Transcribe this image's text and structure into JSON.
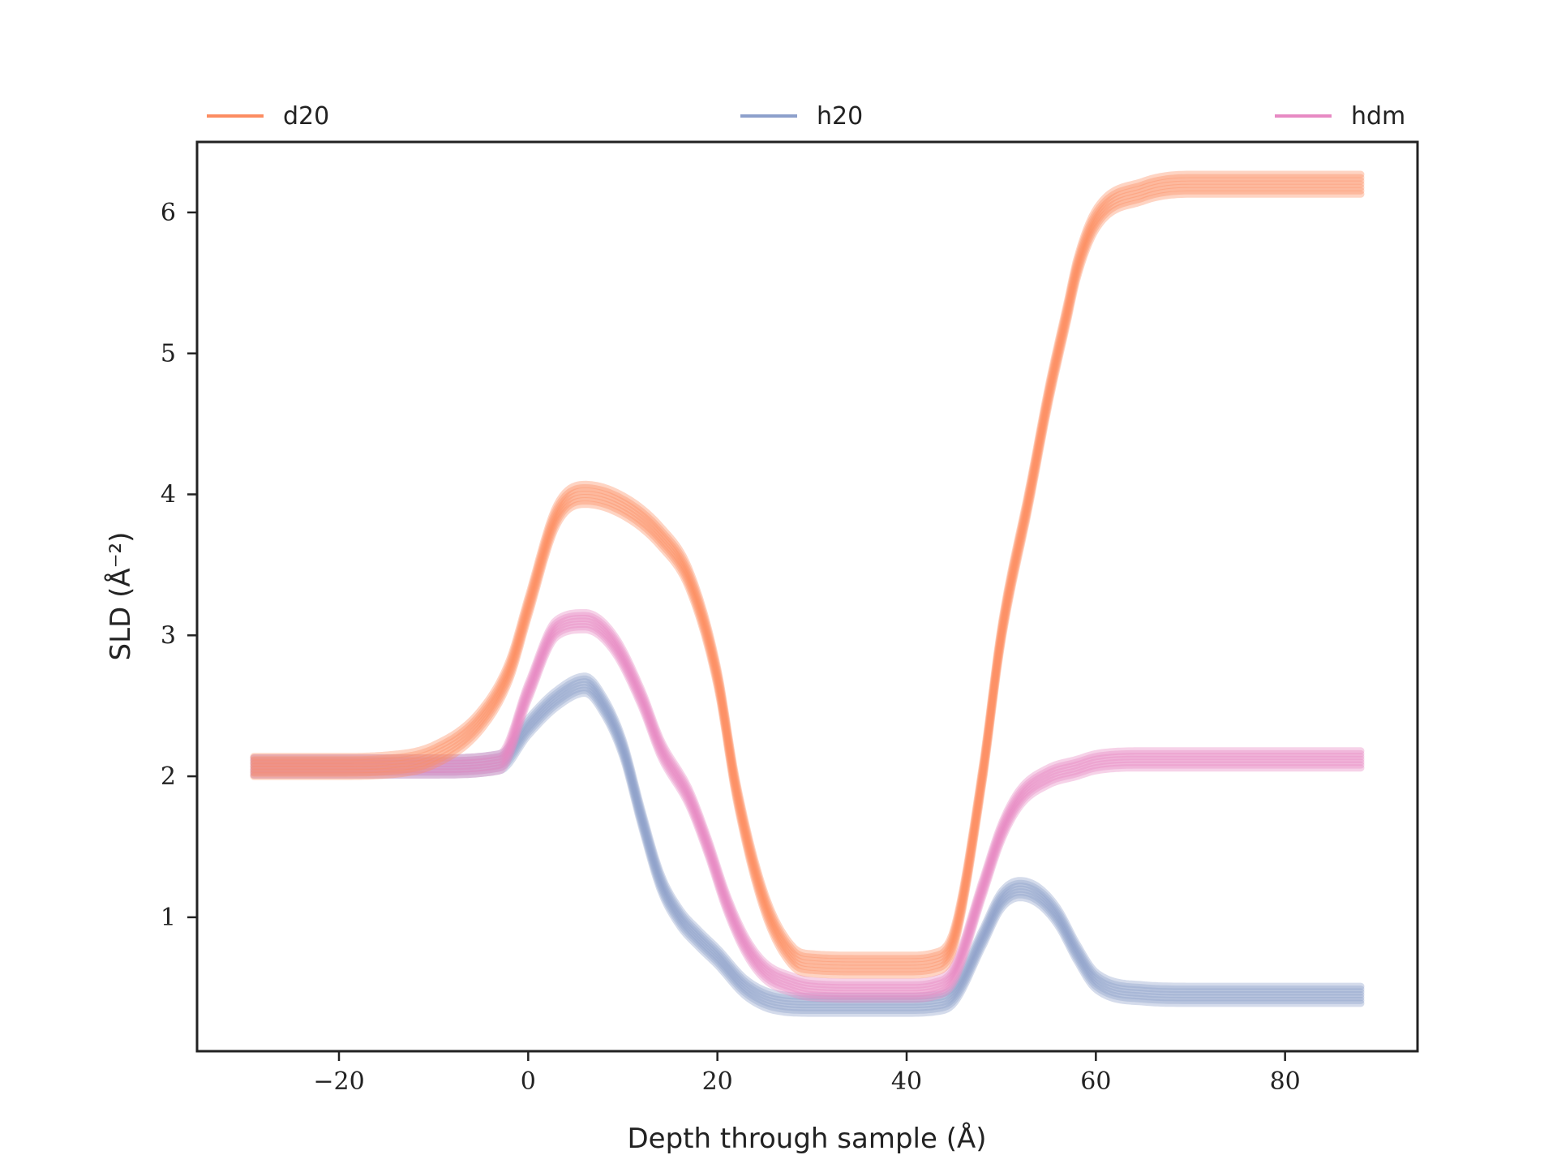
{
  "chart_data": {
    "type": "line",
    "title": "",
    "xlabel": "Depth through sample (Å)",
    "ylabel": "SLD (Å⁻²)",
    "xlim": [
      -35,
      94
    ],
    "ylim": [
      0.05,
      6.5
    ],
    "xticks": [
      -20,
      0,
      20,
      40,
      60,
      80
    ],
    "xtick_labels": [
      "−20",
      "0",
      "20",
      "40",
      "60",
      "80"
    ],
    "yticks": [
      1,
      2,
      3,
      4,
      5,
      6
    ],
    "ytick_labels": [
      "1",
      "2",
      "3",
      "4",
      "5",
      "6"
    ],
    "grid": false,
    "legend_position": "top, above axes",
    "series": [
      {
        "name": "d20",
        "color": "#fc8d62",
        "band_width": 0.14,
        "x": [
          -29,
          -20,
          -15,
          -10,
          -5,
          -2,
          0,
          3,
          6,
          10,
          14,
          17,
          20,
          22,
          25,
          28,
          30,
          35,
          40,
          43,
          45,
          48,
          50,
          53,
          55,
          57,
          58,
          60,
          65,
          70,
          80,
          88
        ],
        "y": [
          2.07,
          2.07,
          2.08,
          2.15,
          2.4,
          2.75,
          3.2,
          3.85,
          4.0,
          3.92,
          3.7,
          3.4,
          2.7,
          1.9,
          1.1,
          0.72,
          0.67,
          0.66,
          0.66,
          0.68,
          0.85,
          2.0,
          3.0,
          4.0,
          4.7,
          5.3,
          5.6,
          5.95,
          6.15,
          6.2,
          6.2,
          6.2
        ]
      },
      {
        "name": "h20",
        "color": "#8da0cb",
        "band_width": 0.12,
        "x": [
          -29,
          -10,
          -3,
          0,
          3,
          6,
          8,
          10,
          12,
          14,
          16,
          18,
          20,
          23,
          26,
          30,
          35,
          40,
          43,
          45,
          48,
          50,
          52,
          54,
          56,
          58,
          60,
          65,
          70,
          80,
          88
        ],
        "y": [
          2.07,
          2.07,
          2.1,
          2.35,
          2.55,
          2.65,
          2.5,
          2.2,
          1.7,
          1.25,
          1.0,
          0.85,
          0.72,
          0.5,
          0.4,
          0.38,
          0.38,
          0.38,
          0.39,
          0.45,
          0.85,
          1.12,
          1.2,
          1.15,
          1.0,
          0.75,
          0.55,
          0.46,
          0.45,
          0.45,
          0.45
        ]
      },
      {
        "name": "hdm",
        "color": "#e78ac3",
        "band_width": 0.12,
        "x": [
          -29,
          -10,
          -3,
          0,
          3,
          6,
          9,
          12,
          14,
          17,
          19,
          21,
          23,
          25,
          28,
          30,
          35,
          40,
          43,
          45,
          48,
          50,
          52,
          55,
          58,
          60,
          65,
          70,
          80,
          88
        ],
        "y": [
          2.07,
          2.07,
          2.1,
          2.6,
          3.05,
          3.1,
          2.95,
          2.55,
          2.2,
          1.85,
          1.5,
          1.1,
          0.8,
          0.62,
          0.52,
          0.49,
          0.48,
          0.48,
          0.5,
          0.6,
          1.2,
          1.6,
          1.85,
          2.0,
          2.06,
          2.1,
          2.12,
          2.12,
          2.12,
          2.12
        ]
      }
    ]
  }
}
